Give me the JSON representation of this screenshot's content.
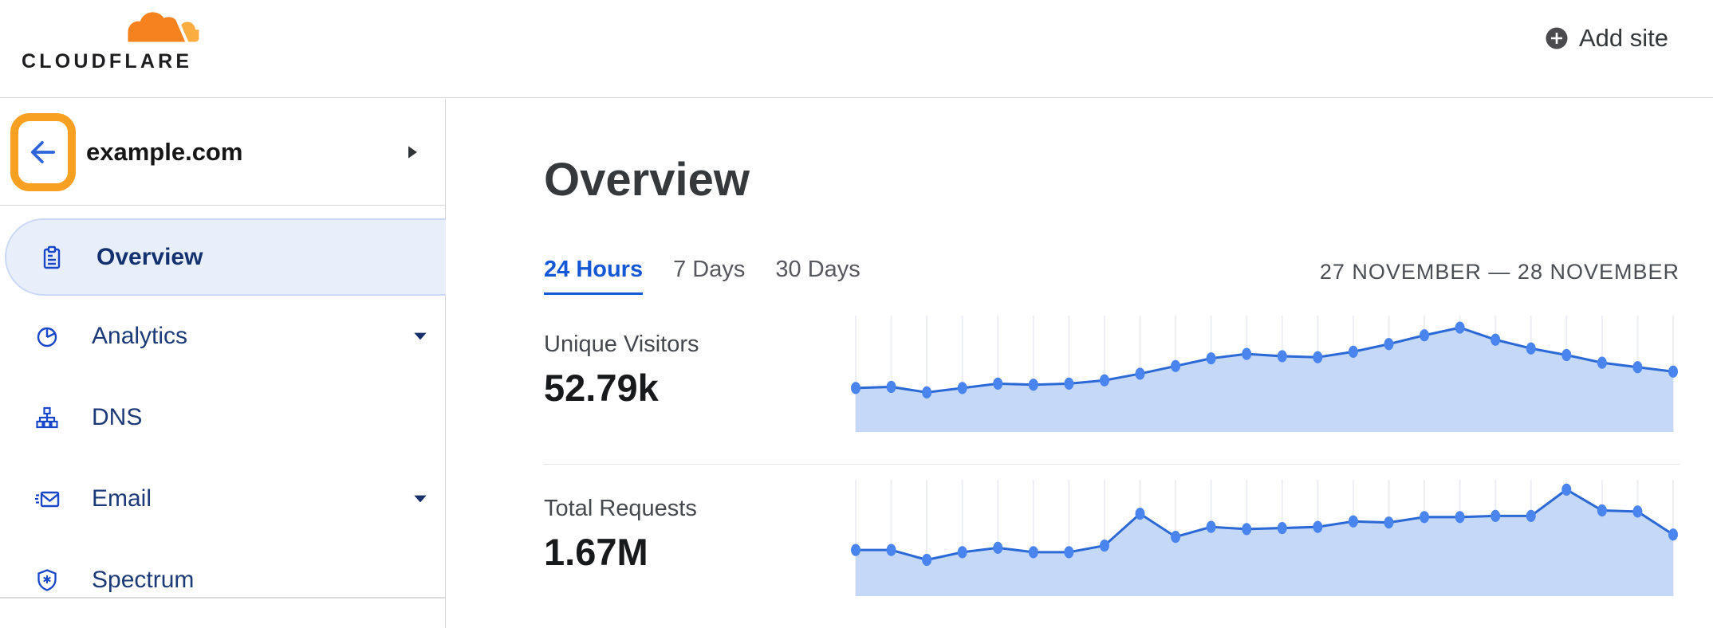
{
  "header": {
    "logo_text": "CLOUDFLARE",
    "add_site_label": "Add site"
  },
  "sidebar": {
    "site_name": "example.com",
    "back_button": "back-arrow (highlighted with orange annotation box)",
    "items": [
      {
        "label": "Overview",
        "icon": "clipboard-icon",
        "selected": true,
        "expandable": false
      },
      {
        "label": "Analytics",
        "icon": "pie-chart-icon",
        "selected": false,
        "expandable": true
      },
      {
        "label": "DNS",
        "icon": "dns-tree-icon",
        "selected": false,
        "expandable": false
      },
      {
        "label": "Email",
        "icon": "email-icon",
        "selected": false,
        "expandable": true
      },
      {
        "label": "Spectrum",
        "icon": "shield-icon",
        "selected": false,
        "expandable": false
      }
    ]
  },
  "main": {
    "title": "Overview",
    "tabs": [
      {
        "label": "24 Hours",
        "active": true
      },
      {
        "label": "7 Days",
        "active": false
      },
      {
        "label": "30 Days",
        "active": false
      }
    ],
    "date_range": "27 NOVEMBER — 28 NOVEMBER",
    "metrics": [
      {
        "label": "Unique Visitors",
        "value": "52.79k"
      },
      {
        "label": "Total Requests",
        "value": "1.67M"
      }
    ]
  },
  "colors": {
    "brand_orange": "#f6821f",
    "brand_orange_light": "#fbad41",
    "annotation_orange": "#f7a022",
    "nav_icon_blue": "#1846c8",
    "nav_text_blue": "#1c3a78",
    "nav_selected_bg": "#e9eefb",
    "tab_active_blue": "#1558d6",
    "chart_line": "#2b69d6",
    "chart_dot": "#4a84ee",
    "chart_fill": "#c5d8f8",
    "chart_grid": "#eceef4"
  },
  "chart_data": [
    {
      "type": "area",
      "title": "Unique Visitors",
      "total_shown": "52.79k",
      "time_window": "24 Hours (27 November — 28 November)",
      "x": [
        0,
        1,
        2,
        3,
        4,
        5,
        6,
        7,
        8,
        9,
        10,
        11,
        12,
        13,
        14,
        15,
        16,
        17,
        18,
        19,
        20,
        21,
        22,
        23
      ],
      "x_unit": "hour index across 24-hour window",
      "values_relative": [
        0.4,
        0.41,
        0.36,
        0.4,
        0.44,
        0.43,
        0.44,
        0.47,
        0.53,
        0.6,
        0.67,
        0.71,
        0.69,
        0.68,
        0.73,
        0.8,
        0.88,
        0.95,
        0.84,
        0.76,
        0.7,
        0.63,
        0.59,
        0.55
      ],
      "y_axis": "unlabeled (relative height 0-1, estimated from pixels)",
      "legend": "none",
      "grid": "faint vertical gridline at each data point",
      "style": "blue line with round markers and light-blue area fill to baseline"
    },
    {
      "type": "area",
      "title": "Total Requests",
      "total_shown": "1.67M",
      "time_window": "24 Hours (27 November — 28 November)",
      "x": [
        0,
        1,
        2,
        3,
        4,
        5,
        6,
        7,
        8,
        9,
        10,
        11,
        12,
        13,
        14,
        15,
        16,
        17,
        18,
        19,
        20,
        21,
        22,
        23
      ],
      "x_unit": "hour index across 24-hour window",
      "values_relative": [
        0.42,
        0.42,
        0.33,
        0.4,
        0.44,
        0.4,
        0.4,
        0.46,
        0.75,
        0.54,
        0.63,
        0.61,
        0.62,
        0.63,
        0.68,
        0.67,
        0.72,
        0.72,
        0.73,
        0.73,
        0.97,
        0.78,
        0.77,
        0.56
      ],
      "y_axis": "unlabeled (relative height 0-1, estimated from pixels)",
      "legend": "none",
      "grid": "faint vertical gridline at each data point",
      "style": "blue line with round markers and light-blue area fill to baseline"
    }
  ]
}
